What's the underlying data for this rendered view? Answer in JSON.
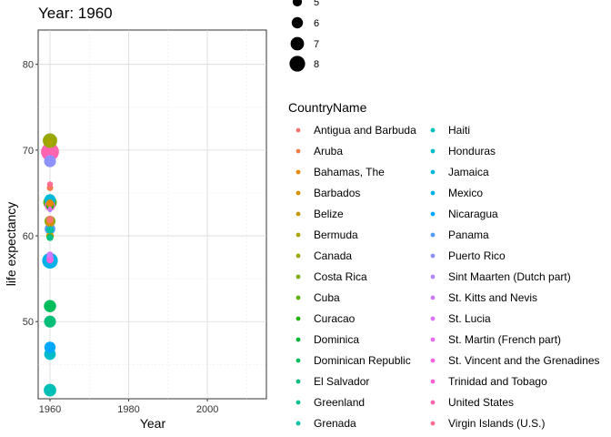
{
  "chart_data": {
    "type": "scatter",
    "title": "Year: 1960",
    "xlabel": "Year",
    "ylabel": "life expectancy",
    "xlim": [
      1957,
      2015
    ],
    "ylim": [
      41,
      84
    ],
    "x_ticks": [
      1960,
      1980,
      2000
    ],
    "y_ticks": [
      50,
      60,
      70,
      80
    ],
    "grid": true,
    "size_legend": {
      "labels": [
        "5",
        "6",
        "7",
        "8"
      ],
      "values": [
        5,
        6,
        7,
        8
      ]
    },
    "color_legend_title": "CountryName",
    "series": [
      {
        "name": "Antigua and Barbuda",
        "color": "#F8766D",
        "x": 1960,
        "y": 61.9,
        "size": 5.0
      },
      {
        "name": "Aruba",
        "color": "#F07E4D",
        "x": 1960,
        "y": 65.6,
        "size": 4.7
      },
      {
        "name": "Bahamas, The",
        "color": "#E58700",
        "x": 1960,
        "y": 63.8,
        "size": 5.0
      },
      {
        "name": "Barbados",
        "color": "#D69100",
        "x": 1960,
        "y": 61.5,
        "size": 5.3
      },
      {
        "name": "Belize",
        "color": "#C49A00",
        "x": 1960,
        "y": 60.0,
        "size": 5.1
      },
      {
        "name": "Bermuda",
        "color": "#AFA300",
        "x": 1960,
        "y": 70.9,
        "size": 4.6
      },
      {
        "name": "Canada",
        "color": "#99A800",
        "x": 1960,
        "y": 71.1,
        "size": 7.2
      },
      {
        "name": "Costa Rica",
        "color": "#7FAD00",
        "x": 1960,
        "y": 61.7,
        "size": 6.1
      },
      {
        "name": "Cuba",
        "color": "#5BB300",
        "x": 1960,
        "y": 63.9,
        "size": 6.9
      },
      {
        "name": "Curacao",
        "color": "#20B600",
        "x": 1960,
        "y": 63.5,
        "size": 5.1
      },
      {
        "name": "Dominica",
        "color": "#00BA38",
        "x": 1960,
        "y": 59.8,
        "size": 4.8
      },
      {
        "name": "Dominican Republic",
        "color": "#00BD5C",
        "x": 1960,
        "y": 51.8,
        "size": 6.5
      },
      {
        "name": "El Salvador",
        "color": "#00BE78",
        "x": 1960,
        "y": 50.0,
        "size": 6.4
      },
      {
        "name": "Greenland",
        "color": "#00C08E",
        "x": 1960,
        "y": 59.8,
        "size": 4.6
      },
      {
        "name": "Grenada",
        "color": "#00C1A4",
        "x": 1960,
        "y": 60.7,
        "size": 5.0
      },
      {
        "name": "Haiti",
        "color": "#00BFB7",
        "x": 1960,
        "y": 42.0,
        "size": 6.6
      },
      {
        "name": "Honduras",
        "color": "#00BCCA",
        "x": 1960,
        "y": 46.2,
        "size": 6.3
      },
      {
        "name": "Jamaica",
        "color": "#00B8DA",
        "x": 1960,
        "y": 64.2,
        "size": 6.2
      },
      {
        "name": "Mexico",
        "color": "#00B2E7",
        "x": 1960,
        "y": 57.1,
        "size": 7.6
      },
      {
        "name": "Nicaragua",
        "color": "#00A9FF",
        "x": 1960,
        "y": 47.0,
        "size": 6.2
      },
      {
        "name": "Panama",
        "color": "#529EFF",
        "x": 1960,
        "y": 60.8,
        "size": 6.0
      },
      {
        "name": "Puerto Rico",
        "color": "#8F91FF",
        "x": 1960,
        "y": 68.7,
        "size": 6.4
      },
      {
        "name": "Sint Maarten (Dutch part)",
        "color": "#B385FF",
        "x": 1960,
        "y": 63.0,
        "size": 4.0
      },
      {
        "name": "St. Kitts and Nevis",
        "color": "#CB7AFF",
        "x": 1960,
        "y": 57.8,
        "size": 4.7
      },
      {
        "name": "St. Lucia",
        "color": "#DD71FA",
        "x": 1960,
        "y": 57.5,
        "size": 4.9
      },
      {
        "name": "St. Martin (French part)",
        "color": "#EA6AF1",
        "x": 1960,
        "y": 63.2,
        "size": 3.8
      },
      {
        "name": "St. Vincent and the Grenadines",
        "color": "#F564E3",
        "x": 1960,
        "y": 57.2,
        "size": 4.9
      },
      {
        "name": "Trinidad and Tobago",
        "color": "#FC61D5",
        "x": 1960,
        "y": 63.5,
        "size": 5.9
      },
      {
        "name": "United States",
        "color": "#FF64B0",
        "x": 1960,
        "y": 69.8,
        "size": 8.3
      },
      {
        "name": "Virgin Islands (U.S.)",
        "color": "#FF6C91",
        "x": 1960,
        "y": 66.0,
        "size": 4.5
      }
    ]
  }
}
